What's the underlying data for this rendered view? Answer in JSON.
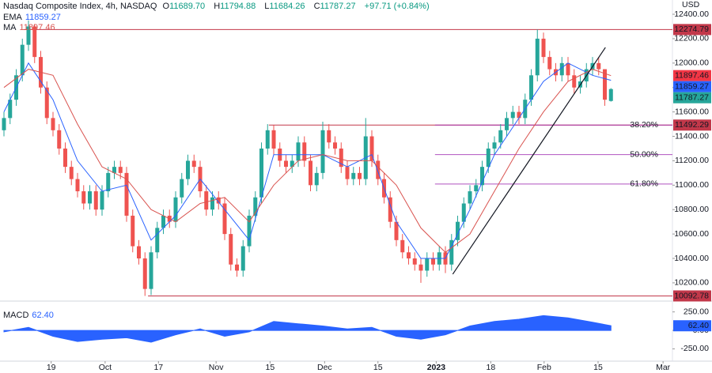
{
  "chart_data": {
    "type": "candlestick",
    "title": "Nasdaq Composite Index, 4h, NASDAQ",
    "currency": "USD",
    "quote": {
      "names": [
        "O",
        "H",
        "L",
        "C"
      ],
      "values": [
        11689.7,
        11794.88,
        11684.26,
        11787.27
      ],
      "value_labels": [
        "11689.70",
        "11794.88",
        "11684.26",
        "11787.27"
      ],
      "change": "+97.71 (+0.84%)"
    },
    "up_color": "#26a69a",
    "down_color": "#ef5350",
    "candles": [
      [
        11450,
        11600,
        11400,
        11550
      ],
      [
        11550,
        11750,
        11500,
        11700
      ],
      [
        11700,
        11950,
        11650,
        11900
      ],
      [
        11900,
        12200,
        11850,
        12150
      ],
      [
        12150,
        12350,
        12100,
        12300
      ],
      [
        12300,
        12320,
        12000,
        12050
      ],
      [
        12050,
        12100,
        11750,
        11800
      ],
      [
        11800,
        11850,
        11500,
        11550
      ],
      [
        11550,
        11600,
        11400,
        11450
      ],
      [
        11450,
        11500,
        11250,
        11300
      ],
      [
        11300,
        11350,
        11100,
        11150
      ],
      [
        11150,
        11200,
        11000,
        11050
      ],
      [
        11050,
        11100,
        10900,
        10950
      ],
      [
        10950,
        11000,
        10800,
        10850
      ],
      [
        10850,
        11000,
        10800,
        10950
      ],
      [
        10950,
        11000,
        10750,
        10800
      ],
      [
        10800,
        11000,
        10750,
        10950
      ],
      [
        10950,
        11150,
        10900,
        11100
      ],
      [
        11100,
        11200,
        11050,
        11150
      ],
      [
        11150,
        11200,
        11050,
        11100
      ],
      [
        11100,
        11150,
        10700,
        10750
      ],
      [
        10750,
        10800,
        10450,
        10500
      ],
      [
        10500,
        10550,
        10350,
        10400
      ],
      [
        10400,
        10450,
        10092.78,
        10150
      ],
      [
        10150,
        10500,
        10100,
        10450
      ],
      [
        10450,
        10700,
        10400,
        10650
      ],
      [
        10650,
        10800,
        10600,
        10750
      ],
      [
        10750,
        10800,
        10650,
        10700
      ],
      [
        10700,
        10950,
        10650,
        10900
      ],
      [
        10900,
        11100,
        10850,
        11050
      ],
      [
        11050,
        11250,
        11000,
        11200
      ],
      [
        11200,
        11250,
        11100,
        11150
      ],
      [
        11150,
        11200,
        10900,
        10950
      ],
      [
        10950,
        11000,
        10750,
        10800
      ],
      [
        10800,
        10950,
        10750,
        10900
      ],
      [
        10900,
        10950,
        10800,
        10850
      ],
      [
        10850,
        10900,
        10550,
        10600
      ],
      [
        10600,
        10650,
        10300,
        10350
      ],
      [
        10350,
        10400,
        10250,
        10300
      ],
      [
        10300,
        10550,
        10250,
        10500
      ],
      [
        10500,
        10800,
        10450,
        10750
      ],
      [
        10750,
        10950,
        10700,
        10900
      ],
      [
        10900,
        11350,
        10850,
        11300
      ],
      [
        11300,
        11500,
        11250,
        11450
      ],
      [
        11450,
        11492.29,
        11250,
        11300
      ],
      [
        11300,
        11350,
        11150,
        11200
      ],
      [
        11200,
        11250,
        11100,
        11150
      ],
      [
        11150,
        11250,
        11100,
        11200
      ],
      [
        11200,
        11400,
        11150,
        11350
      ],
      [
        11350,
        11400,
        11150,
        11200
      ],
      [
        11200,
        11250,
        10950,
        11000
      ],
      [
        11000,
        11150,
        10950,
        11100
      ],
      [
        11100,
        11520,
        11050,
        11450
      ],
      [
        11450,
        11500,
        11300,
        11350
      ],
      [
        11350,
        11400,
        11250,
        11300
      ],
      [
        11300,
        11350,
        11100,
        11150
      ],
      [
        11150,
        11200,
        11000,
        11050
      ],
      [
        11050,
        11150,
        11000,
        11100
      ],
      [
        11100,
        11150,
        11000,
        11050
      ],
      [
        11050,
        11550,
        11000,
        11400
      ],
      [
        11400,
        11450,
        11150,
        11200
      ],
      [
        11200,
        11250,
        11000,
        11050
      ],
      [
        11050,
        11100,
        10850,
        10900
      ],
      [
        10900,
        10950,
        10650,
        10700
      ],
      [
        10700,
        10750,
        10500,
        10550
      ],
      [
        10550,
        10600,
        10400,
        10450
      ],
      [
        10450,
        10500,
        10350,
        10400
      ],
      [
        10400,
        10450,
        10300,
        10350
      ],
      [
        10350,
        10400,
        10200,
        10300
      ],
      [
        10300,
        10450,
        10250,
        10400
      ],
      [
        10400,
        10450,
        10300,
        10350
      ],
      [
        10350,
        10500,
        10300,
        10450
      ],
      [
        10450,
        10500,
        10280,
        10350
      ],
      [
        10350,
        10600,
        10300,
        10550
      ],
      [
        10550,
        10750,
        10500,
        10700
      ],
      [
        10700,
        10900,
        10650,
        10850
      ],
      [
        10850,
        11000,
        10800,
        10950
      ],
      [
        10950,
        11050,
        10900,
        11000
      ],
      [
        11000,
        11200,
        10950,
        11150
      ],
      [
        11150,
        11350,
        11100,
        11300
      ],
      [
        11300,
        11400,
        11250,
        11350
      ],
      [
        11350,
        11500,
        11300,
        11450
      ],
      [
        11450,
        11600,
        11400,
        11550
      ],
      [
        11550,
        11650,
        11500,
        11600
      ],
      [
        11600,
        11650,
        11500,
        11550
      ],
      [
        11550,
        11750,
        11500,
        11700
      ],
      [
        11700,
        11950,
        11650,
        11900
      ],
      [
        11900,
        12274.79,
        11850,
        12200
      ],
      [
        12200,
        12250,
        12000,
        12050
      ],
      [
        12050,
        12100,
        11900,
        11950
      ],
      [
        11950,
        12000,
        11850,
        11900
      ],
      [
        11900,
        12050,
        11850,
        12000
      ],
      [
        12000,
        12050,
        11850,
        11900
      ],
      [
        11900,
        11950,
        11750,
        11800
      ],
      [
        11800,
        11900,
        11750,
        11850
      ],
      [
        11850,
        12000,
        11800,
        11950
      ],
      [
        11950,
        12050,
        11900,
        12000
      ],
      [
        12000,
        12050,
        11900,
        11950
      ],
      [
        11950,
        11950,
        11650,
        11700
      ],
      [
        11689.7,
        11794.88,
        11684.26,
        11787.27
      ]
    ],
    "xlim": [
      -0.645,
      109.03
    ],
    "xticks": [
      {
        "value": 7.7,
        "label": "19"
      },
      {
        "value": 16.5,
        "label": "Oct"
      },
      {
        "value": 25.2,
        "label": "17"
      },
      {
        "value": 34.6,
        "label": "Nov"
      },
      {
        "value": 43.4,
        "label": "15"
      },
      {
        "value": 52.3,
        "label": "Dec"
      },
      {
        "value": 61,
        "label": "15"
      },
      {
        "value": 70.5,
        "label": "2023"
      },
      {
        "value": 79.4,
        "label": "18"
      },
      {
        "value": 88.1,
        "label": "Feb"
      },
      {
        "value": 96.9,
        "label": "15"
      },
      {
        "value": 107.5,
        "label": "Mar"
      }
    ],
    "ylim": [
      10057,
      12465
    ],
    "yticks": [
      {
        "value": 10200,
        "label": "10200.00"
      },
      {
        "value": 10400,
        "label": "10400.00"
      },
      {
        "value": 10600,
        "label": "10600.00"
      },
      {
        "value": 10800,
        "label": "10800.00"
      },
      {
        "value": 11000,
        "label": "11000.00"
      },
      {
        "value": 11200,
        "label": "11200.00"
      },
      {
        "value": 11400,
        "label": "11400.00"
      },
      {
        "value": 11600,
        "label": "11600.00"
      },
      {
        "value": 11800,
        "label": "11800.00"
      },
      {
        "value": 12000,
        "label": "12000.00"
      },
      {
        "value": 12200,
        "label": "12200.00"
      },
      {
        "value": 12400,
        "label": "12400.00"
      }
    ],
    "indicators": [
      {
        "name": "EMA",
        "color": "#2962ff",
        "x": [
          0,
          4,
          8,
          12,
          16,
          20,
          24,
          28,
          32,
          36,
          40,
          44,
          48,
          52,
          56,
          60,
          64,
          68,
          72,
          76,
          80,
          84,
          88,
          92,
          96,
          99
        ],
        "values": [
          11600,
          12000,
          11700,
          11200,
          10950,
          11000,
          10550,
          10750,
          11050,
          10800,
          10550,
          11250,
          11250,
          11250,
          11150,
          11250,
          10700,
          10400,
          10400,
          10800,
          11250,
          11550,
          11850,
          12000,
          11900,
          11859.27
        ]
      },
      {
        "name": "MA",
        "color": "#d9534f",
        "x": [
          0,
          4,
          8,
          12,
          16,
          20,
          24,
          28,
          32,
          36,
          40,
          44,
          48,
          52,
          56,
          60,
          64,
          68,
          72,
          76,
          80,
          84,
          88,
          92,
          96,
          99
        ],
        "values": [
          11800,
          11950,
          11900,
          11500,
          11150,
          11050,
          10800,
          10700,
          10850,
          10900,
          10700,
          11000,
          11200,
          11250,
          11200,
          11200,
          11000,
          10650,
          10450,
          10600,
          10950,
          11300,
          11600,
          11850,
          11950,
          11897.46
        ]
      }
    ],
    "price_lines": [
      {
        "value": 12274.79,
        "from": 3.2
      },
      {
        "value": 11492.29,
        "from": 43.2
      },
      {
        "value": 10092.78,
        "from": 23.5
      }
    ],
    "line_color": "#c2384a",
    "fib": {
      "color": "#9c27b0",
      "from": 70.3,
      "levels": [
        {
          "value": 11492.29,
          "label": "38.20%"
        },
        {
          "value": 11250.5,
          "label": "50.00%"
        },
        {
          "value": 11009.3,
          "label": "61.80%"
        }
      ]
    },
    "trendline": {
      "x": [
        73.2,
        98.1
      ],
      "values": [
        10271,
        12128
      ]
    },
    "macd": {
      "name": "MACD",
      "color": "#2962ff",
      "current": {
        "value": 62.4,
        "label": "62.40"
      },
      "x": [
        0,
        4,
        8,
        12,
        16,
        20,
        24,
        28,
        32,
        36,
        40,
        44,
        48,
        52,
        56,
        60,
        64,
        68,
        72,
        76,
        80,
        84,
        88,
        92,
        96,
        99
      ],
      "values": [
        -20,
        40,
        -80,
        -150,
        -120,
        -100,
        -160,
        -60,
        20,
        -80,
        -20,
        120,
        90,
        60,
        20,
        40,
        -80,
        -120,
        -60,
        60,
        120,
        150,
        200,
        170,
        110,
        62.4
      ],
      "ylim": [
        -427,
        375
      ],
      "yticks": [
        {
          "value": 250,
          "label": "250.00"
        },
        {
          "value": 0,
          "label": "0.00"
        },
        {
          "value": -250,
          "label": "-250.00"
        }
      ]
    }
  }
}
